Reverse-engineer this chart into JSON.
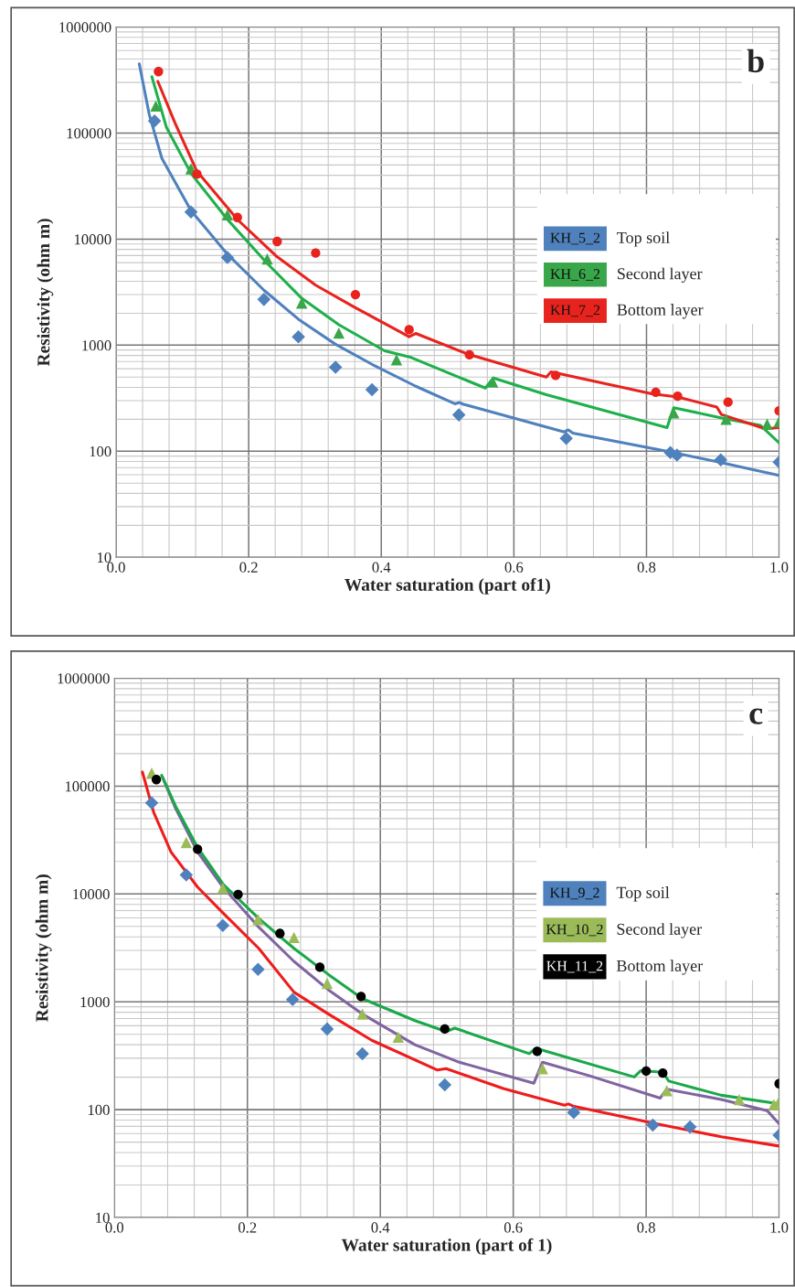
{
  "chart_data": [
    {
      "type": "scatter",
      "xlabel": "Water saturation (part of1)",
      "ylabel": "Resistivity (ohm m)",
      "annotations": [
        "b",
        "Top soil",
        "Second layer",
        "Bottom layer"
      ],
      "log": "y",
      "grid": true,
      "legend": "right",
      "xlim": [
        0,
        1
      ],
      "ylim": [
        10,
        1000000
      ],
      "xticks": [
        {
          "value": 0,
          "label": "0.0"
        },
        {
          "value": 0.2,
          "label": "0.2"
        },
        {
          "value": 0.4,
          "label": "0.4"
        },
        {
          "value": 0.6,
          "label": "0.6"
        },
        {
          "value": 0.8,
          "label": "0.8"
        },
        {
          "value": 1,
          "label": "1.0"
        }
      ],
      "yticks": [
        10,
        100,
        1000,
        10000,
        100000,
        1000000
      ],
      "series": [
        {
          "name": "KH_5_2",
          "marker": "diamond",
          "color": "#4f81bd",
          "x": [
            0.058,
            0.113,
            0.168,
            0.223,
            0.275,
            0.331,
            0.386,
            0.517,
            0.679,
            0.836,
            0.846,
            0.912,
            1.0
          ],
          "values": [
            130000,
            18000,
            6700,
            2700,
            1200,
            620,
            380,
            220,
            132,
            97,
            92,
            83,
            79
          ]
        },
        {
          "name": "KH_6_2",
          "marker": "triangle",
          "color": "#3aa64a",
          "x": [
            0.06,
            0.113,
            0.168,
            0.228,
            0.28,
            0.336,
            0.423,
            0.568,
            0.841,
            0.92,
            0.982,
            1.0
          ],
          "values": [
            180000,
            46000,
            17000,
            6500,
            2500,
            1300,
            730,
            450,
            230,
            200,
            180,
            190
          ]
        },
        {
          "name": "KH_7_2",
          "marker": "circle",
          "color": "#e8231e",
          "x": [
            0.064,
            0.122,
            0.183,
            0.243,
            0.301,
            0.361,
            0.442,
            0.533,
            0.663,
            0.814,
            0.847,
            0.923,
            1.0
          ],
          "values": [
            380000,
            41000,
            16000,
            9500,
            7400,
            3000,
            1400,
            810,
            520,
            360,
            330,
            290,
            240
          ]
        },
        {
          "type": "line",
          "marker": "none",
          "color": "#4f81bd",
          "x": [
            0.035,
            0.05,
            0.069,
            0.113,
            0.168,
            0.223,
            0.277,
            0.331,
            0.386,
            0.452,
            0.511,
            0.518,
            0.524,
            0.676,
            0.682,
            0.689,
            0.834,
            0.913,
            1.0
          ],
          "values": [
            450000,
            150000,
            58000,
            18600,
            7200,
            3300,
            1720,
            1020,
            660,
            410,
            280,
            288,
            277,
            152,
            159,
            148,
            99,
            78,
            59
          ]
        },
        {
          "type": "line",
          "marker": "none",
          "color": "#1db04b",
          "x": [
            0.054,
            0.076,
            0.113,
            0.168,
            0.228,
            0.28,
            0.336,
            0.405,
            0.445,
            0.557,
            0.569,
            0.649,
            0.831,
            0.841,
            0.92,
            0.972,
            1.0
          ],
          "values": [
            340000,
            113000,
            41600,
            15300,
            5900,
            2770,
            1560,
            885,
            765,
            394,
            490,
            341,
            167,
            257,
            202,
            175,
            120
          ]
        },
        {
          "type": "line",
          "marker": "none",
          "color": "#e8231e",
          "x": [
            0.063,
            0.089,
            0.122,
            0.183,
            0.243,
            0.301,
            0.359,
            0.442,
            0.452,
            0.531,
            0.649,
            0.656,
            0.808,
            0.847,
            0.906,
            0.913,
            0.979,
            1.0
          ],
          "values": [
            307000,
            124000,
            43600,
            15300,
            6800,
            3680,
            2290,
            1200,
            1290,
            822,
            500,
            560,
            348,
            325,
            261,
            222,
            163,
            167
          ]
        }
      ]
    },
    {
      "type": "scatter",
      "xlabel": "Water saturation (part of 1)",
      "ylabel": "Resistivity (ohm m)",
      "annotations": [
        "c",
        "Top soil",
        "Second layer",
        "Bottom layer"
      ],
      "log": "y",
      "grid": true,
      "legend": "right",
      "xlim": [
        0,
        1
      ],
      "ylim": [
        10,
        1000000
      ],
      "xticks": [
        {
          "value": 0,
          "label": "0.0"
        },
        {
          "value": 0.2,
          "label": "0.2"
        },
        {
          "value": 0.4,
          "label": "0.4"
        },
        {
          "value": 0.6,
          "label": "0.6"
        },
        {
          "value": 0.8,
          "label": "0.8"
        },
        {
          "value": 1,
          "label": "1.0"
        }
      ],
      "yticks": [
        10,
        100,
        1000,
        10000,
        100000,
        1000000
      ],
      "series": [
        {
          "name": "KH_9_2",
          "marker": "diamond",
          "color": "#4f81bd",
          "x": [
            0.056,
            0.108,
            0.163,
            0.216,
            0.268,
            0.32,
            0.373,
            0.497,
            0.691,
            0.81,
            0.866,
            1.0
          ],
          "values": [
            70000,
            15000,
            5100,
            2000,
            1050,
            560,
            330,
            170,
            94,
            72,
            69,
            58
          ]
        },
        {
          "name": "KH_10_2",
          "marker": "triangle",
          "color": "#9bbb59",
          "x": [
            0.056,
            0.108,
            0.163,
            0.216,
            0.27,
            0.32,
            0.373,
            0.427,
            0.644,
            0.831,
            0.94,
            0.992,
            1.0
          ],
          "values": [
            132000,
            30000,
            11300,
            5800,
            3950,
            1480,
            770,
            470,
            240,
            150,
            124,
            111,
            119
          ]
        },
        {
          "name": "KH_11_2",
          "marker": "circle",
          "color": "#000000",
          "x": [
            0.063,
            0.125,
            0.186,
            0.249,
            0.309,
            0.371,
            0.497,
            0.636,
            0.8,
            0.825,
            1.0
          ],
          "values": [
            115000,
            26000,
            9900,
            4300,
            2090,
            1120,
            560,
            347,
            228,
            218,
            174
          ]
        },
        {
          "type": "line",
          "marker": "none",
          "color": "#ee1c1c",
          "x": [
            0.042,
            0.059,
            0.085,
            0.125,
            0.164,
            0.217,
            0.27,
            0.322,
            0.387,
            0.486,
            0.499,
            0.585,
            0.677,
            0.683,
            0.69,
            0.815,
            0.913,
            1.0
          ],
          "values": [
            135000,
            57000,
            24500,
            11600,
            6600,
            3130,
            1230,
            770,
            440,
            233,
            240,
            157,
            110,
            113,
            108,
            74,
            56,
            46
          ]
        },
        {
          "type": "line",
          "marker": "none",
          "color": "#8064a2",
          "x": [
            0.072,
            0.092,
            0.125,
            0.163,
            0.216,
            0.27,
            0.322,
            0.373,
            0.452,
            0.519,
            0.631,
            0.644,
            0.716,
            0.821,
            0.831,
            0.913,
            0.982,
            1.0
          ],
          "values": [
            122000,
            62000,
            24500,
            11600,
            5000,
            2370,
            1290,
            770,
            400,
            275,
            176,
            275,
            205,
            128,
            155,
            124,
            98,
            74
          ]
        },
        {
          "type": "line",
          "marker": "none",
          "color": "#1aa84a",
          "x": [
            0.071,
            0.092,
            0.125,
            0.164,
            0.216,
            0.27,
            0.322,
            0.373,
            0.452,
            0.499,
            0.512,
            0.624,
            0.634,
            0.782,
            0.792,
            0.825,
            0.834,
            0.913,
            1.0
          ],
          "values": [
            126000,
            65000,
            27000,
            12200,
            6000,
            3130,
            1790,
            1070,
            670,
            530,
            570,
            331,
            371,
            201,
            230,
            222,
            184,
            136,
            113
          ]
        }
      ]
    }
  ]
}
